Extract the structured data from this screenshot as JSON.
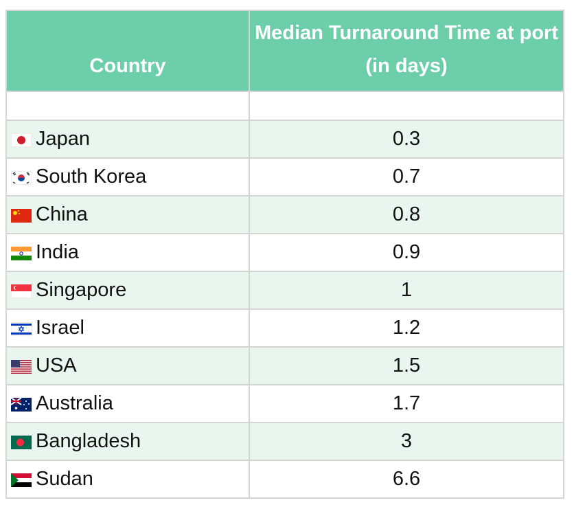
{
  "table": {
    "header": [
      "Country",
      "Median Turnaround Time at port (in days)"
    ],
    "rows": [
      [
        "Japan",
        0.3
      ],
      [
        "South Korea",
        0.7
      ],
      [
        "China",
        0.8
      ],
      [
        "India",
        0.9
      ],
      [
        "Singapore",
        1
      ],
      [
        "Israel",
        1.2
      ],
      [
        "USA",
        1.5
      ],
      [
        "Australia",
        1.7
      ],
      [
        "Bangladesh",
        3
      ],
      [
        "Sudan",
        6.6
      ]
    ]
  }
}
